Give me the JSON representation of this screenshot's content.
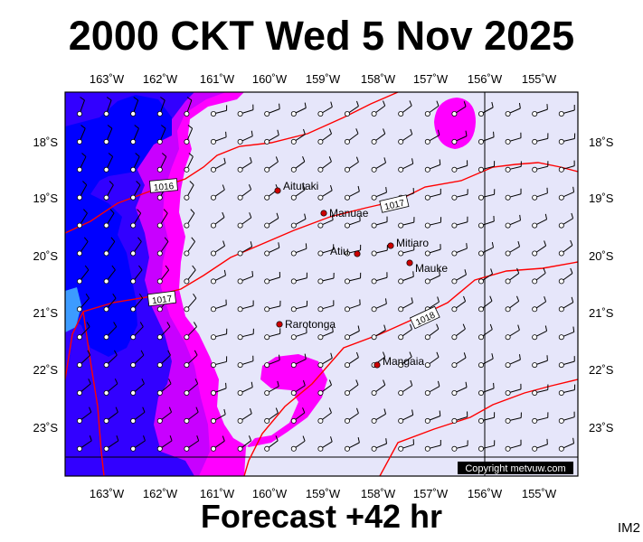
{
  "title": "2000 CKT Wed 5 Nov 2025",
  "subtitle": "Forecast +42 hr",
  "image_code": "IM2",
  "copyright": "Copyright metvuw.com",
  "colors": {
    "background_field": "#e6e6fa",
    "wind_light": "#ff00ff",
    "wind_moderate": "#c800ff",
    "wind_strong": "#3200ff",
    "wind_stronger": "#0000ff",
    "wind_strongest": "#3c9bff",
    "isobar": "#ff0000",
    "grid": "#000000"
  },
  "axes": {
    "longitude_labels": [
      "163˚W",
      "162˚W",
      "161˚W",
      "160˚W",
      "159˚W",
      "158˚W",
      "157˚W",
      "156˚W",
      "155˚W"
    ],
    "latitude_labels": [
      "18˚S",
      "19˚S",
      "20˚S",
      "21˚S",
      "22˚S",
      "23˚S"
    ]
  },
  "isobar_labels": [
    "1016",
    "1017",
    "1017",
    "1018"
  ],
  "places": [
    {
      "name": "Aitutaki"
    },
    {
      "name": "Manuae"
    },
    {
      "name": "Atiu"
    },
    {
      "name": "Mitiaro"
    },
    {
      "name": "Mauke"
    },
    {
      "name": "Rarotonga"
    },
    {
      "name": "Mangaia"
    }
  ]
}
